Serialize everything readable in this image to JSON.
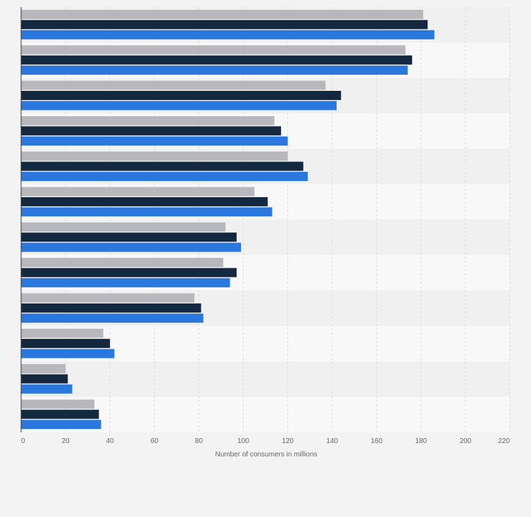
{
  "chart_data": {
    "type": "bar",
    "orientation": "horizontal",
    "title": "",
    "xlabel": "Number of consumers in millions",
    "ylabel": "",
    "xlim": [
      0,
      220
    ],
    "x_ticks": [
      0,
      20,
      40,
      60,
      80,
      100,
      120,
      140,
      160,
      180,
      200,
      220
    ],
    "grid": true,
    "legend": "none",
    "categories": [
      "",
      "",
      "",
      "",
      "",
      "",
      "",
      "",
      "",
      "",
      "",
      ""
    ],
    "series": [
      {
        "color": "#b8b8bc",
        "values": [
          181,
          173,
          137,
          114,
          120,
          105,
          92,
          91,
          78,
          37,
          20,
          33
        ]
      },
      {
        "color": "#14283f",
        "values": [
          183,
          176,
          144,
          117,
          127,
          111,
          97,
          97,
          81,
          40,
          21,
          35
        ]
      },
      {
        "color": "#2a78de",
        "values": [
          186,
          174,
          142,
          120,
          129,
          113,
          99,
          94,
          82,
          42,
          23,
          36
        ]
      }
    ]
  }
}
